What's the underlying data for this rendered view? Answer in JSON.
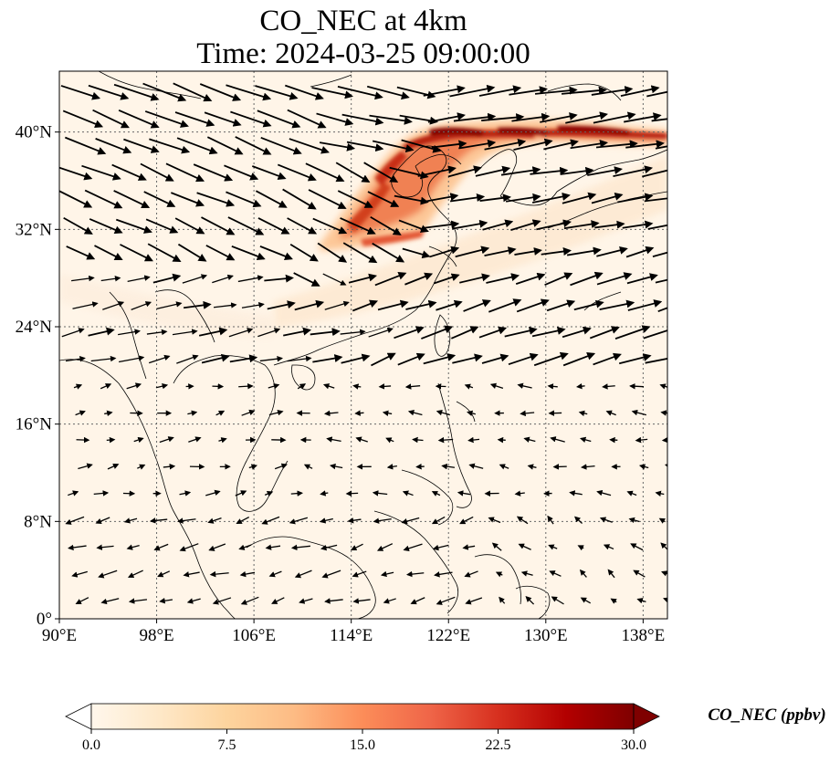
{
  "title": {
    "line1": "CO_NEC at 4km",
    "line2": "Time: 2024-03-25 09:00:00"
  },
  "map": {
    "lon_range": [
      90,
      140
    ],
    "lat_range": [
      0,
      45
    ],
    "lon_ticks": [
      {
        "value": 90,
        "label": "90°E"
      },
      {
        "value": 98,
        "label": "98°E"
      },
      {
        "value": 106,
        "label": "106°E"
      },
      {
        "value": 114,
        "label": "114°E"
      },
      {
        "value": 122,
        "label": "122°E"
      },
      {
        "value": 130,
        "label": "130°E"
      },
      {
        "value": 138,
        "label": "138°E"
      }
    ],
    "lat_ticks": [
      {
        "value": 0,
        "label": "0°"
      },
      {
        "value": 8,
        "label": "8°N"
      },
      {
        "value": 16,
        "label": "16°N"
      },
      {
        "value": 24,
        "label": "24°N"
      },
      {
        "value": 32,
        "label": "32°N"
      },
      {
        "value": 40,
        "label": "40°N"
      }
    ],
    "gridlines": "dotted",
    "background_color": "#fff5e8",
    "coastline_color": "#000000"
  },
  "colorbar": {
    "label": "CO_NEC (ppbv)",
    "min": 0,
    "max": 30,
    "ticks": [
      "0.0",
      "7.5",
      "15.0",
      "22.5",
      "30.0"
    ],
    "colormap": "OrRd",
    "extend": "both",
    "colors": [
      "#fff7ec",
      "#fee8c8",
      "#fdd49e",
      "#fdbb84",
      "#fc8d59",
      "#ef6548",
      "#d7301f",
      "#b30000",
      "#7f0000"
    ]
  },
  "plume": {
    "description_colors": [
      "#fdd0a2",
      "#f08050",
      "#c0281a",
      "#8b0000"
    ]
  }
}
